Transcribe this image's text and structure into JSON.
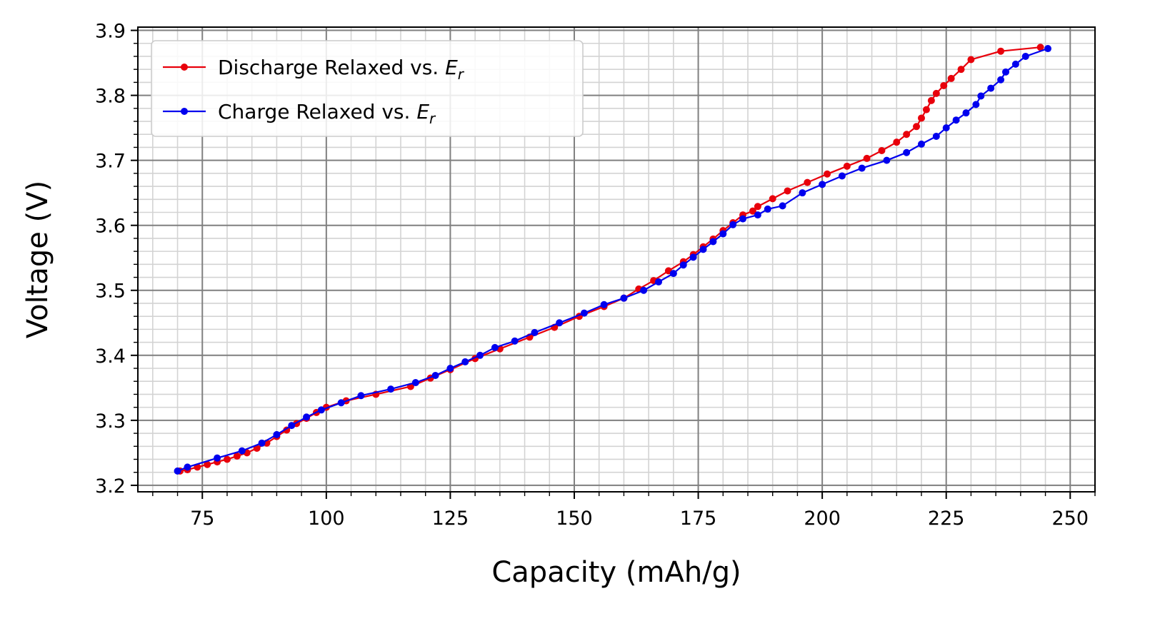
{
  "chart_data": {
    "type": "line",
    "title": "",
    "xlabel": "Capacity (mAh/g)",
    "ylabel": "Voltage (V)",
    "xlim": [
      62,
      255
    ],
    "ylim": [
      3.19,
      3.905
    ],
    "xticks": [
      75,
      100,
      125,
      150,
      175,
      200,
      225,
      250
    ],
    "yticks": [
      3.2,
      3.3,
      3.4,
      3.5,
      3.6,
      3.7,
      3.8,
      3.9
    ],
    "x_minor_step": 5,
    "y_minor_step": 0.02,
    "grid": "major and minor",
    "legend_position": "upper-left",
    "legend": [
      {
        "prefix": "Discharge Relaxed vs. ",
        "symbol": "E",
        "subscript": "r",
        "color": "#e8000b"
      },
      {
        "prefix": "Charge Relaxed vs. ",
        "symbol": "E",
        "subscript": "r",
        "color": "#0000ee"
      }
    ],
    "series": [
      {
        "name": "Discharge Relaxed vs. Er",
        "color": "#e8000b",
        "points": [
          [
            70.5,
            3.222
          ],
          [
            72,
            3.224
          ],
          [
            74,
            3.228
          ],
          [
            76,
            3.232
          ],
          [
            78,
            3.236
          ],
          [
            80,
            3.24
          ],
          [
            82,
            3.245
          ],
          [
            84,
            3.25
          ],
          [
            86,
            3.257
          ],
          [
            88,
            3.265
          ],
          [
            90,
            3.275
          ],
          [
            92,
            3.285
          ],
          [
            94,
            3.295
          ],
          [
            96,
            3.303
          ],
          [
            98,
            3.312
          ],
          [
            100,
            3.32
          ],
          [
            104,
            3.33
          ],
          [
            110,
            3.34
          ],
          [
            117,
            3.352
          ],
          [
            121,
            3.365
          ],
          [
            125,
            3.378
          ],
          [
            130,
            3.395
          ],
          [
            135,
            3.41
          ],
          [
            141,
            3.428
          ],
          [
            146,
            3.443
          ],
          [
            151,
            3.46
          ],
          [
            156,
            3.475
          ],
          [
            160,
            3.488
          ],
          [
            163,
            3.502
          ],
          [
            166,
            3.515
          ],
          [
            169,
            3.53
          ],
          [
            172,
            3.544
          ],
          [
            174,
            3.555
          ],
          [
            176,
            3.567
          ],
          [
            178,
            3.579
          ],
          [
            180,
            3.592
          ],
          [
            182,
            3.604
          ],
          [
            184,
            3.616
          ],
          [
            186,
            3.622
          ],
          [
            187,
            3.629
          ],
          [
            190,
            3.641
          ],
          [
            193,
            3.653
          ],
          [
            197,
            3.666
          ],
          [
            201,
            3.679
          ],
          [
            205,
            3.691
          ],
          [
            209,
            3.703
          ],
          [
            212,
            3.715
          ],
          [
            215,
            3.728
          ],
          [
            217,
            3.74
          ],
          [
            219,
            3.752
          ],
          [
            220,
            3.765
          ],
          [
            221,
            3.778
          ],
          [
            222,
            3.792
          ],
          [
            223,
            3.803
          ],
          [
            224.5,
            3.815
          ],
          [
            226,
            3.826
          ],
          [
            228,
            3.84
          ],
          [
            230,
            3.855
          ],
          [
            236,
            3.868
          ],
          [
            244,
            3.874
          ]
        ]
      },
      {
        "name": "Charge Relaxed vs. Er",
        "color": "#0000ee",
        "points": [
          [
            70,
            3.222
          ],
          [
            72,
            3.228
          ],
          [
            78,
            3.242
          ],
          [
            83,
            3.253
          ],
          [
            87,
            3.265
          ],
          [
            90,
            3.278
          ],
          [
            93,
            3.292
          ],
          [
            96,
            3.305
          ],
          [
            99,
            3.316
          ],
          [
            103,
            3.327
          ],
          [
            107,
            3.338
          ],
          [
            113,
            3.348
          ],
          [
            118,
            3.358
          ],
          [
            122,
            3.369
          ],
          [
            125,
            3.38
          ],
          [
            128,
            3.39
          ],
          [
            131,
            3.4
          ],
          [
            134,
            3.412
          ],
          [
            138,
            3.422
          ],
          [
            142,
            3.435
          ],
          [
            147,
            3.45
          ],
          [
            152,
            3.465
          ],
          [
            156,
            3.478
          ],
          [
            160,
            3.488
          ],
          [
            164,
            3.5
          ],
          [
            167,
            3.513
          ],
          [
            170,
            3.526
          ],
          [
            172,
            3.539
          ],
          [
            174,
            3.551
          ],
          [
            176,
            3.563
          ],
          [
            178,
            3.575
          ],
          [
            180,
            3.587
          ],
          [
            182,
            3.601
          ],
          [
            184,
            3.61
          ],
          [
            187,
            3.616
          ],
          [
            189,
            3.625
          ],
          [
            192,
            3.63
          ],
          [
            196,
            3.65
          ],
          [
            200,
            3.663
          ],
          [
            204,
            3.676
          ],
          [
            208,
            3.688
          ],
          [
            213,
            3.7
          ],
          [
            217,
            3.712
          ],
          [
            220,
            3.725
          ],
          [
            223,
            3.737
          ],
          [
            225,
            3.75
          ],
          [
            227,
            3.762
          ],
          [
            229,
            3.773
          ],
          [
            231,
            3.786
          ],
          [
            232,
            3.799
          ],
          [
            234,
            3.811
          ],
          [
            236,
            3.824
          ],
          [
            237,
            3.836
          ],
          [
            239,
            3.848
          ],
          [
            241,
            3.86
          ],
          [
            245.5,
            3.872
          ]
        ]
      }
    ]
  }
}
